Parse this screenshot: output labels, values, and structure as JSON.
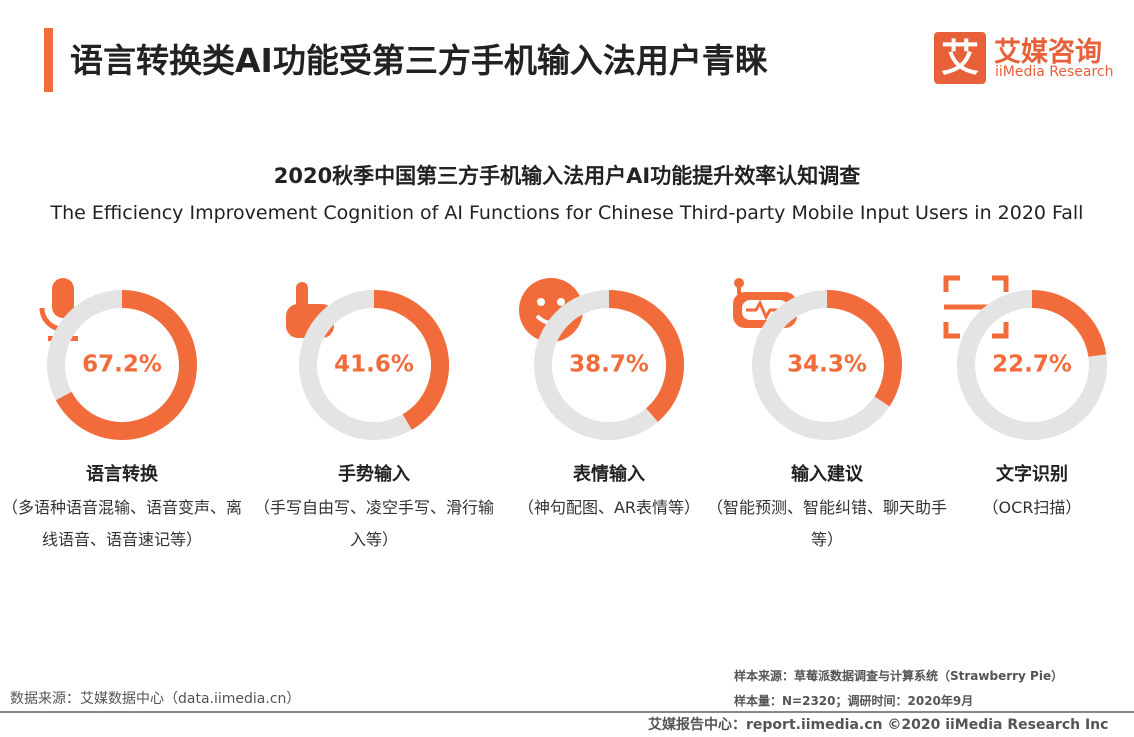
{
  "header": {
    "title": "语言转换类AI功能受第三方手机输入法用户青睐",
    "logo_icon": "艾",
    "logo_cn": "艾媒咨询",
    "logo_en": "iiMedia Research"
  },
  "chart_data": {
    "type": "donut",
    "title": "2020秋季中国第三方手机输入法用户AI功能提升效率认知调查",
    "subtitle": "The Efficiency Improvement Cognition of AI Functions for Chinese Third-party Mobile Input Users in 2020 Fall",
    "categories": [
      "语言转换",
      "手势输入",
      "表情输入",
      "输入建议",
      "文字识别"
    ],
    "descriptions": [
      "（多语种语音混输、语音变声、离线语音、语音速记等）",
      "（手写自由写、凌空手写、滑行输入等）",
      "（神句配图、AR表情等）",
      "（智能预测、智能纠错、聊天助手等）",
      "（OCR扫描）"
    ],
    "values": [
      67.2,
      41.6,
      38.7,
      34.3,
      22.7
    ],
    "value_labels": [
      "67.2%",
      "41.6%",
      "38.7%",
      "34.3%",
      "22.7%"
    ],
    "color": "#f26b3a",
    "track_color": "#e4e4e4"
  },
  "footer": {
    "data_source": "数据来源：艾媒数据中心（data.iimedia.cn）",
    "sample_source": "样本来源：草莓派数据调查与计算系统（Strawberry Pie）",
    "sample_size": "样本量：N=2320；调研时间：2020年9月",
    "report_center": "艾媒报告中心：report.iimedia.cn  ©2020  iiMedia Research  Inc"
  }
}
